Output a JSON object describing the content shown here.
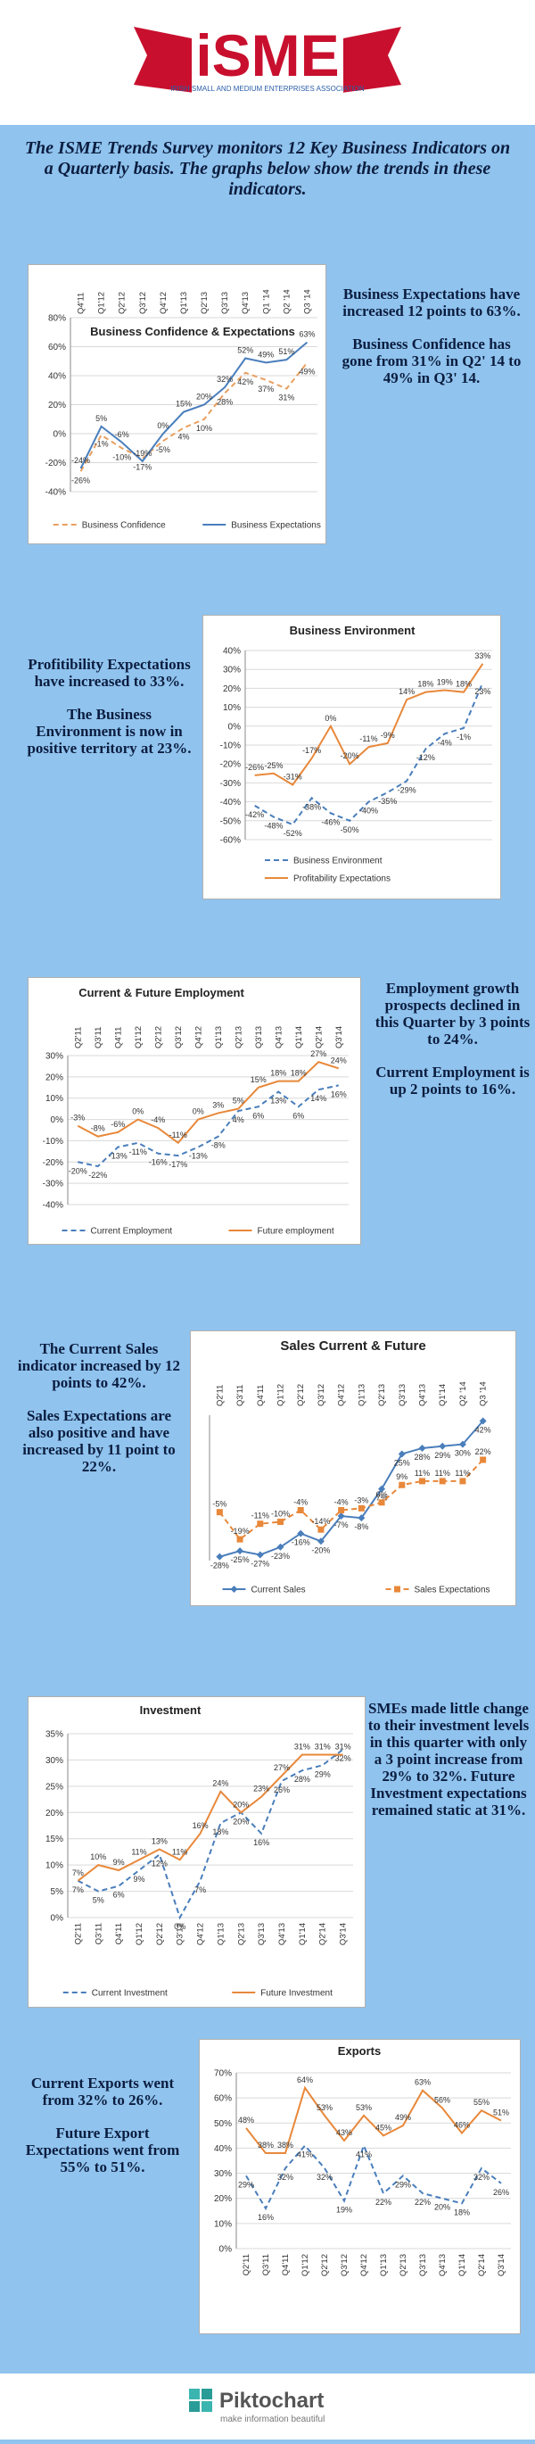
{
  "header": {
    "logo": "iSME",
    "subtitle": "IRISH SMALL AND MEDIUM ENTERPRISES ASSOCIATION"
  },
  "intro": "The ISME Trends Survey monitors 12 Key Business Indicators on a Quarterly basis. The graphs below show the trends in these indicators.",
  "notes": [
    [
      "Business Expectations have increased 12 points to 63%.",
      "Business Confidence has gone from 31% in Q2' 14 to 49% in Q3' 14."
    ],
    [
      "Profitibility Expectations have increased to 33%.",
      "The Business Environment is now in positive territory at 23%."
    ],
    [
      "Employment growth prospects declined in this Quarter by 3 points to 24%.",
      "Current Employment is up 2 points to 16%."
    ],
    [
      "The Current Sales indicator increased by 12 points to 42%.",
      "Sales Expectations are also positive and have increased by 11 point to 22%."
    ],
    [
      "SMEs made little change to their investment levels in this quarter with only a 3 point increase from 29% to 32%. Future Investment expectations remained static at 31%."
    ],
    [
      "Current Exports went from 32% to 26%.",
      "Future Export Expectations went from 55% to 51%."
    ]
  ],
  "chart_data": [
    {
      "type": "line",
      "title": "Business Confidence & Expectations",
      "categories": [
        "Q4'11",
        "Q1'12",
        "Q2'12",
        "Q3'12",
        "Q4'12",
        "Q1'13",
        "Q2'13",
        "Q3'13",
        "Q4'13",
        "Q1 '14",
        "Q2 '14",
        "Q3 '14"
      ],
      "series": [
        {
          "name": "Business Confidence",
          "color": "#e8a060",
          "line_style": "dashed",
          "values": [
            -26,
            -1,
            -10,
            -17,
            -5,
            4,
            10,
            28,
            42,
            37,
            31,
            49
          ],
          "value_labels": [
            "-26%",
            "-1%",
            "-10%",
            "-17%",
            "-5%",
            "4%",
            "10%",
            "28%",
            "42%",
            "37%",
            "31%",
            "49%"
          ]
        },
        {
          "name": "Business Expectations",
          "color": "#4a7ebb",
          "line_style": "solid",
          "values": [
            -24,
            5,
            -6,
            -19,
            0,
            15,
            20,
            32,
            52,
            49,
            51,
            63
          ],
          "value_labels": [
            "-24%",
            "5%",
            "-6%",
            "-19%",
            "0%",
            "15%",
            "20%",
            "32%",
            "52%",
            "49%",
            "51%",
            "63%"
          ]
        }
      ],
      "ylim": [
        -40,
        80
      ],
      "yticks": [
        {
          "value": -40,
          "label": "-40%"
        },
        {
          "value": -20,
          "label": "-20%"
        },
        {
          "value": 0,
          "label": "0%"
        },
        {
          "value": 20,
          "label": "20%"
        },
        {
          "value": 40,
          "label": "40%"
        },
        {
          "value": 60,
          "label": "60%"
        },
        {
          "value": 80,
          "label": "80%"
        }
      ],
      "grid": true,
      "legend": "bottom"
    },
    {
      "type": "line",
      "title": "Business Environment",
      "series": [
        {
          "name": "Business Environment",
          "color": "#4a7ebb",
          "line_style": "dashed",
          "values": [
            -42,
            -48,
            -52,
            -38,
            -46,
            -50,
            -40,
            -35,
            -29,
            -12,
            -4,
            -1,
            23
          ],
          "value_labels": [
            "-42%",
            "-48%",
            "-52%",
            "-38%",
            "-46%",
            "-50%",
            "-40%",
            "-35%",
            "-29%",
            "-12%",
            "-4%",
            "-1%",
            "23%"
          ]
        },
        {
          "name": "Profitability Expectations",
          "color": "#e8883a",
          "line_style": "solid",
          "values": [
            -26,
            -25,
            -31,
            -17,
            0,
            -20,
            -11,
            -9,
            14,
            18,
            19,
            18,
            33
          ],
          "value_labels": [
            "-26%",
            "-25%",
            "-31%",
            "-17%",
            "0%",
            "-20%",
            "-11%",
            "-9%",
            "14%",
            "18%",
            "19%",
            "18%",
            "33%"
          ]
        }
      ],
      "ylim": [
        -60,
        40
      ],
      "yticks": [
        {
          "value": -60,
          "label": "-60%"
        },
        {
          "value": -50,
          "label": "-50%"
        },
        {
          "value": -40,
          "label": "-40%"
        },
        {
          "value": -30,
          "label": "-30%"
        },
        {
          "value": -20,
          "label": "-20%"
        },
        {
          "value": -10,
          "label": "-10%"
        },
        {
          "value": 0,
          "label": "0%"
        },
        {
          "value": 10,
          "label": "10%"
        },
        {
          "value": 20,
          "label": "20%"
        },
        {
          "value": 30,
          "label": "30%"
        },
        {
          "value": 40,
          "label": "40%"
        }
      ],
      "grid": true,
      "legend": "bottom"
    },
    {
      "type": "line",
      "title": "Current & Future Employment",
      "categories": [
        "Q2'11",
        "Q3'11",
        "Q4'11",
        "Q1'12",
        "Q2'12",
        "Q3'12",
        "Q4'12",
        "Q1'13",
        "Q2'13",
        "Q3'13",
        "Q4'13",
        "Q1'14",
        "Q2'14",
        "Q3'14"
      ],
      "series": [
        {
          "name": "Current Employment",
          "color": "#4a7ebb",
          "line_style": "dashed",
          "values": [
            -20,
            -22,
            -13,
            -11,
            -16,
            -17,
            -13,
            -8,
            4,
            6,
            13,
            6,
            14,
            16
          ],
          "value_labels": [
            "-20%",
            "-22%",
            "-13%",
            "-11%",
            "-16%",
            "-17%",
            "-13%",
            "-8%",
            "4%",
            "6%",
            "13%",
            "6%",
            "14%",
            "16%"
          ]
        },
        {
          "name": "Future employment",
          "color": "#e8883a",
          "line_style": "solid",
          "values": [
            -3,
            -8,
            -6,
            0,
            -4,
            -11,
            0,
            3,
            5,
            15,
            18,
            18,
            27,
            24
          ],
          "value_labels": [
            "-3%",
            "-8%",
            "-6%",
            "0%",
            "-4%",
            "-11%",
            "0%",
            "3%",
            "5%",
            "15%",
            "18%",
            "18%",
            "27%",
            "24%"
          ]
        }
      ],
      "ylim": [
        -40,
        30
      ],
      "yticks": [
        {
          "value": -40,
          "label": "-40%"
        },
        {
          "value": -30,
          "label": "-30%"
        },
        {
          "value": -20,
          "label": "-20%"
        },
        {
          "value": -10,
          "label": "-10%"
        },
        {
          "value": 0,
          "label": "0%"
        },
        {
          "value": 10,
          "label": "10%"
        },
        {
          "value": 20,
          "label": "20%"
        },
        {
          "value": 30,
          "label": "30%"
        }
      ],
      "grid": true,
      "legend": "bottom"
    },
    {
      "type": "line",
      "title": "Sales Current & Future",
      "categories": [
        "Q2'11",
        "Q3'11",
        "Q4'11",
        "Q1'12",
        "Q2'12",
        "Q3'12",
        "Q4'12",
        "Q1'13",
        "Q2'13",
        "Q3'13",
        "Q4'13",
        "Q1'14",
        "Q2 '14",
        "Q3 '14"
      ],
      "series": [
        {
          "name": "Current Sales",
          "color": "#4a7ebb",
          "line_style": "solid",
          "marker": "diamond",
          "values": [
            -28,
            -25,
            -27,
            -23,
            -16,
            -20,
            -7,
            -8,
            7,
            25,
            28,
            29,
            30,
            42
          ],
          "value_labels": [
            "-28%",
            "-25%",
            "-27%",
            "-23%",
            "-16%",
            "-20%",
            "-7%",
            "-8%",
            "7%",
            "25%",
            "28%",
            "29%",
            "30%",
            "42%"
          ]
        },
        {
          "name": "Sales Expectations",
          "color": "#e8883a",
          "line_style": "dashed",
          "marker": "square",
          "values": [
            -5,
            -19,
            -11,
            -10,
            -4,
            -14,
            -4,
            -3,
            0,
            9,
            11,
            11,
            11,
            22
          ],
          "value_labels": [
            "-5%",
            "-19%",
            "-11%",
            "-10%",
            "-4%",
            "-14%",
            "-4%",
            "-3%",
            "0%",
            "9%",
            "11%",
            "11%",
            "11%",
            "22%"
          ]
        }
      ],
      "ylim": [
        -30,
        45
      ],
      "legend": "bottom"
    },
    {
      "type": "line",
      "title": "Investment",
      "categories": [
        "Q2'11",
        "Q3'11",
        "Q4'11",
        "Q1'12",
        "Q2'12",
        "Q3'12",
        "Q4'12",
        "Q1'13",
        "Q2'13",
        "Q3'13",
        "Q4'13",
        "Q1'14",
        "Q2'14",
        "Q3'14"
      ],
      "series": [
        {
          "name": "Current Investment",
          "color": "#4a7ebb",
          "line_style": "dashed",
          "values": [
            7,
            5,
            6,
            9,
            12,
            0,
            7,
            18,
            20,
            16,
            26,
            28,
            29,
            32
          ],
          "value_labels": [
            "7%",
            "5%",
            "6%",
            "9%",
            "12%",
            "0%",
            "7%",
            "18%",
            "20%",
            "16%",
            "26%",
            "28%",
            "29%",
            "32%"
          ]
        },
        {
          "name": "Future Investment",
          "color": "#e8883a",
          "line_style": "solid",
          "values": [
            7,
            10,
            9,
            11,
            13,
            11,
            16,
            24,
            20,
            23,
            27,
            31,
            31,
            31
          ],
          "value_labels": [
            "7%",
            "10%",
            "9%",
            "11%",
            "13%",
            "11%",
            "16%",
            "24%",
            "20%",
            "23%",
            "27%",
            "31%",
            "31%",
            "31%"
          ]
        }
      ],
      "ylim": [
        0,
        35
      ],
      "yticks": [
        {
          "value": 0,
          "label": "0%"
        },
        {
          "value": 5,
          "label": "5%"
        },
        {
          "value": 10,
          "label": "10%"
        },
        {
          "value": 15,
          "label": "15%"
        },
        {
          "value": 20,
          "label": "20%"
        },
        {
          "value": 25,
          "label": "25%"
        },
        {
          "value": 30,
          "label": "30%"
        },
        {
          "value": 35,
          "label": "35%"
        }
      ],
      "grid": true,
      "legend": "bottom"
    },
    {
      "type": "line",
      "title": "Exports",
      "categories": [
        "Q2'11",
        "Q3'11",
        "Q4'11",
        "Q1'12",
        "Q2'12",
        "Q3'12",
        "Q4'12",
        "Q1'13",
        "Q2'13",
        "Q3'13",
        "Q4'13",
        "Q1'14",
        "Q2'14",
        "Q3'14"
      ],
      "series": [
        {
          "color": "#4a7ebb",
          "line_style": "dashed",
          "values": [
            29,
            16,
            32,
            41,
            32,
            19,
            41,
            22,
            29,
            22,
            20,
            18,
            32,
            26
          ],
          "value_labels": [
            "29%",
            "16%",
            "32%",
            "41%",
            "32%",
            "19%",
            "41%",
            "22%",
            "29%",
            "22%",
            "20%",
            "18%",
            "32%",
            "26%"
          ]
        },
        {
          "color": "#e8883a",
          "line_style": "solid",
          "values": [
            48,
            38,
            38,
            64,
            53,
            43,
            53,
            45,
            49,
            63,
            56,
            46,
            55,
            51
          ],
          "value_labels": [
            "48%",
            "38%",
            "38%",
            "64%",
            "53%",
            "43%",
            "53%",
            "45%",
            "49%",
            "63%",
            "56%",
            "46%",
            "55%",
            "51%"
          ]
        }
      ],
      "ylim": [
        0,
        70
      ],
      "yticks": [
        {
          "value": 0,
          "label": "0%"
        },
        {
          "value": 10,
          "label": "10%"
        },
        {
          "value": 20,
          "label": "20%"
        },
        {
          "value": 30,
          "label": "30%"
        },
        {
          "value": 40,
          "label": "40%"
        },
        {
          "value": 50,
          "label": "50%"
        },
        {
          "value": 60,
          "label": "60%"
        },
        {
          "value": 70,
          "label": "70%"
        }
      ],
      "grid": true
    }
  ],
  "footer": {
    "brand": "Piktochart",
    "tagline": "make information beautiful"
  }
}
